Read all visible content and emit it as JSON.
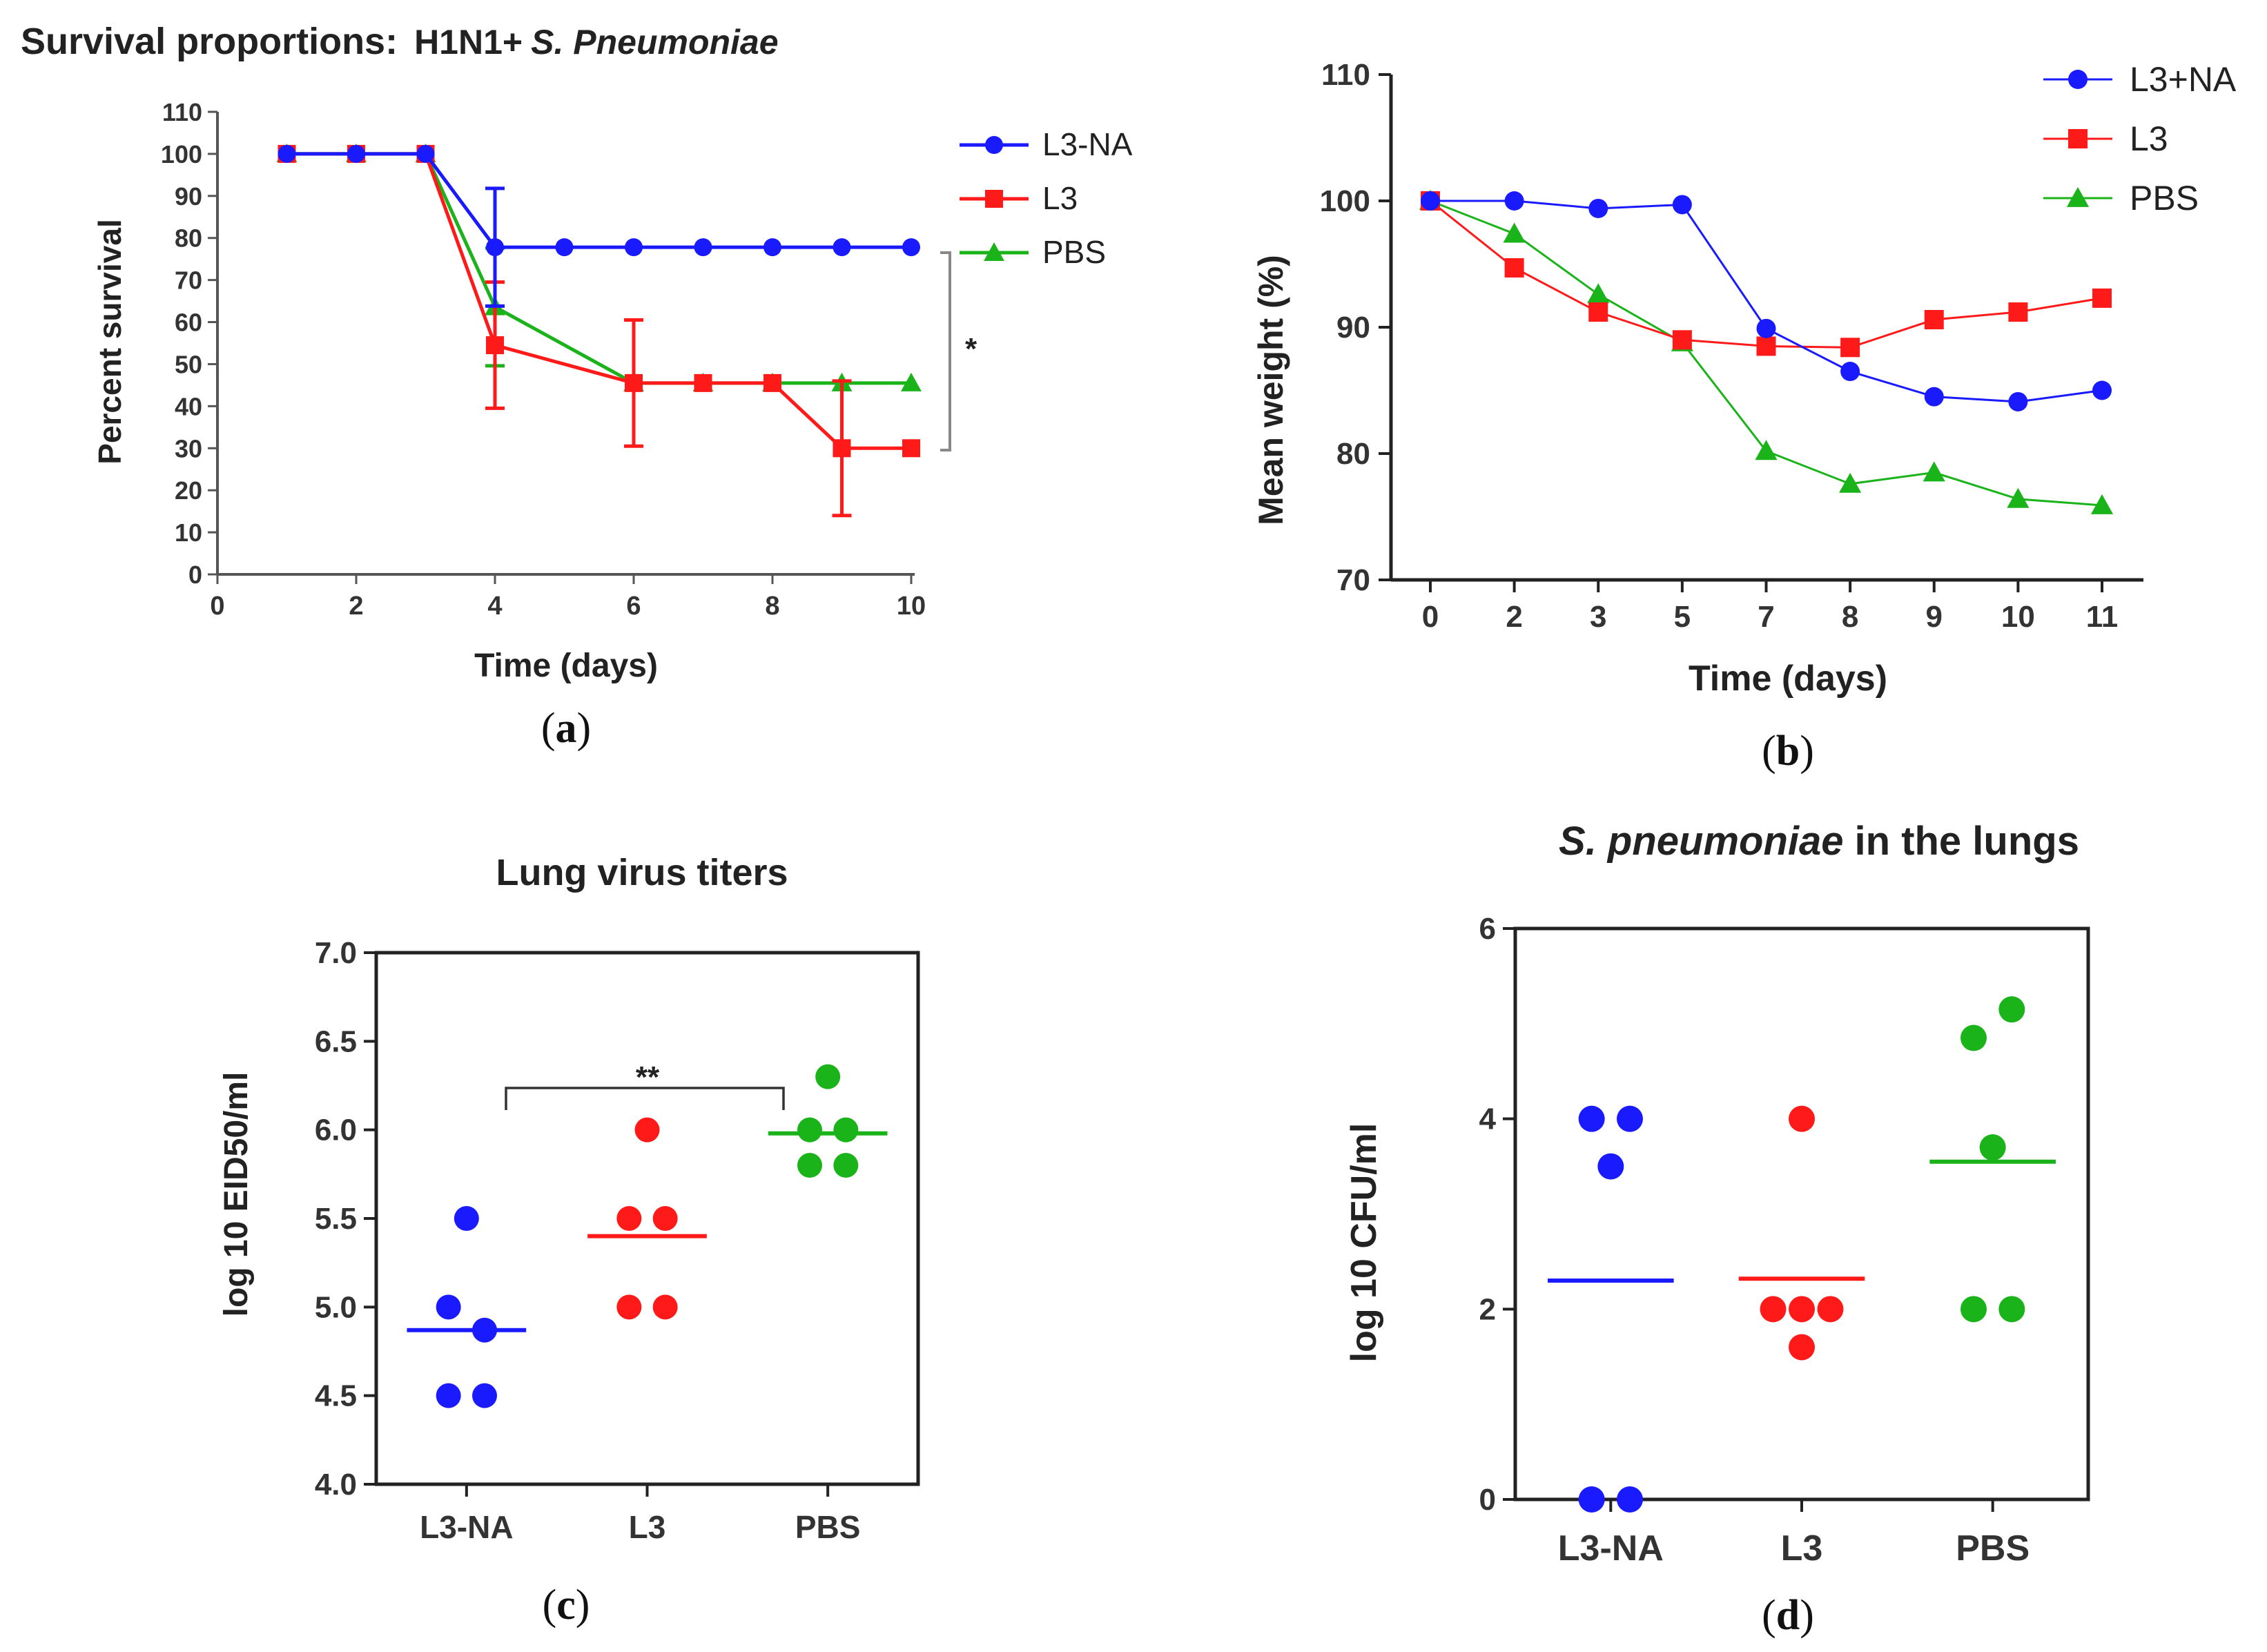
{
  "chart_data": [
    {
      "id": "a",
      "type": "line",
      "panel_label": "a",
      "title": "Survival proportions:",
      "title_suffix": "H1N1+",
      "title_species": "S. Pneumoniae",
      "xlabel": "Time (days)",
      "ylabel": "Percent survival",
      "xlim": [
        0,
        10
      ],
      "ylim": [
        0,
        110
      ],
      "xticks": [
        0,
        2,
        4,
        6,
        8,
        10
      ],
      "yticks": [
        0,
        10,
        20,
        30,
        40,
        50,
        60,
        70,
        80,
        90,
        100,
        110
      ],
      "significance": "*",
      "series": [
        {
          "name": "L3-NA",
          "color": "#1a1aff",
          "marker": "circle",
          "x": [
            1,
            2,
            3,
            4,
            5,
            6,
            7,
            8,
            9,
            10
          ],
          "y": [
            100,
            100,
            100,
            77.8,
            77.8,
            77.8,
            77.8,
            77.8,
            77.8,
            77.8
          ],
          "err": [
            0,
            0,
            0,
            14,
            0,
            0,
            0,
            0,
            0,
            0
          ]
        },
        {
          "name": "L3",
          "color": "#ff1a1a",
          "marker": "square",
          "x": [
            1,
            2,
            3,
            4,
            6,
            7,
            8,
            9,
            10
          ],
          "y": [
            100,
            100,
            100,
            54.5,
            45.5,
            45.5,
            45.5,
            30,
            30
          ],
          "err": [
            0,
            0,
            0,
            15,
            15,
            0,
            0,
            16,
            0
          ]
        },
        {
          "name": "PBS",
          "color": "#1ab31a",
          "marker": "triangle",
          "x": [
            1,
            2,
            3,
            4,
            6,
            7,
            8,
            9,
            10
          ],
          "y": [
            100,
            100,
            100,
            63.6,
            45.5,
            45.5,
            45.5,
            45.5,
            45.5
          ],
          "err": [
            0,
            0,
            0,
            14,
            0,
            0,
            0,
            0,
            0
          ]
        }
      ]
    },
    {
      "id": "b",
      "type": "line",
      "panel_label": "b",
      "xlabel": "Time (days)",
      "ylabel": "Mean weight (%)",
      "categories": [
        "0",
        "2",
        "3",
        "5",
        "7",
        "8",
        "9",
        "10",
        "11"
      ],
      "ylim": [
        70,
        110
      ],
      "yticks": [
        70,
        80,
        90,
        100,
        110
      ],
      "series": [
        {
          "name": "L3+NA",
          "color": "#1a1aff",
          "marker": "circle",
          "values": [
            100,
            100,
            99.4,
            99.7,
            89.9,
            86.5,
            84.5,
            84.1,
            85
          ]
        },
        {
          "name": "L3",
          "color": "#ff1a1a",
          "marker": "square",
          "values": [
            100,
            94.7,
            91.2,
            89,
            88.5,
            88.4,
            90.6,
            91.2,
            92.3
          ]
        },
        {
          "name": "PBS",
          "color": "#1ab31a",
          "marker": "triangle",
          "values": [
            100,
            97.4,
            92.6,
            88.8,
            80.2,
            77.6,
            78.5,
            76.4,
            75.9
          ]
        }
      ]
    },
    {
      "id": "c",
      "type": "scatter",
      "panel_label": "c",
      "title": "Lung virus titers",
      "ylabel": "log 10 EID50/ml",
      "categories": [
        "L3-NA",
        "L3",
        "PBS"
      ],
      "ylim": [
        4.0,
        7.0
      ],
      "yticks": [
        "4.0",
        "4.5",
        "5.0",
        "5.5",
        "6.0",
        "6.5",
        "7.0"
      ],
      "significance": "**",
      "groups": [
        {
          "name": "L3-NA",
          "color": "#1a1aff",
          "points": [
            {
              "y": 5.5,
              "dx": 0
            },
            {
              "y": 5.0,
              "dx": -0.1
            },
            {
              "y": 4.87,
              "dx": 0.1
            },
            {
              "y": 4.5,
              "dx": -0.1
            },
            {
              "y": 4.5,
              "dx": 0.1
            }
          ],
          "mean": 4.87
        },
        {
          "name": "L3",
          "color": "#ff1a1a",
          "points": [
            {
              "y": 6.0,
              "dx": 0
            },
            {
              "y": 5.5,
              "dx": -0.1
            },
            {
              "y": 5.5,
              "dx": 0.1
            },
            {
              "y": 5.0,
              "dx": -0.1
            },
            {
              "y": 5.0,
              "dx": 0.1
            }
          ],
          "mean": 5.4
        },
        {
          "name": "PBS",
          "color": "#1ab31a",
          "points": [
            {
              "y": 6.3,
              "dx": 0
            },
            {
              "y": 6.0,
              "dx": -0.1
            },
            {
              "y": 6.0,
              "dx": 0.1
            },
            {
              "y": 5.8,
              "dx": -0.1
            },
            {
              "y": 5.8,
              "dx": 0.1
            }
          ],
          "mean": 5.98
        }
      ]
    },
    {
      "id": "d",
      "type": "scatter",
      "panel_label": "d",
      "title_species": "S. pneumoniae",
      "title": "in the lungs",
      "ylabel": "log 10 CFU/ml",
      "categories": [
        "L3-NA",
        "L3",
        "PBS"
      ],
      "ylim": [
        0,
        6
      ],
      "yticks": [
        "0",
        "2",
        "4",
        "6"
      ],
      "groups": [
        {
          "name": "L3-NA",
          "color": "#1a1aff",
          "points": [
            {
              "y": 4.0,
              "dx": -0.1
            },
            {
              "y": 4.0,
              "dx": 0.1
            },
            {
              "y": 3.5,
              "dx": 0
            },
            {
              "y": 0,
              "dx": -0.1
            },
            {
              "y": 0,
              "dx": 0.1
            }
          ],
          "mean": 2.3
        },
        {
          "name": "L3",
          "color": "#ff1a1a",
          "points": [
            {
              "y": 4.0,
              "dx": 0
            },
            {
              "y": 2.0,
              "dx": -0.15
            },
            {
              "y": 2.0,
              "dx": 0
            },
            {
              "y": 2.0,
              "dx": 0.15
            },
            {
              "y": 1.6,
              "dx": 0
            }
          ],
          "mean": 2.32
        },
        {
          "name": "PBS",
          "color": "#1ab31a",
          "points": [
            {
              "y": 5.15,
              "dx": 0.1
            },
            {
              "y": 4.85,
              "dx": -0.1
            },
            {
              "y": 3.7,
              "dx": 0
            },
            {
              "y": 2.0,
              "dx": -0.1
            },
            {
              "y": 2.0,
              "dx": 0.1
            }
          ],
          "mean": 3.55
        }
      ]
    }
  ]
}
